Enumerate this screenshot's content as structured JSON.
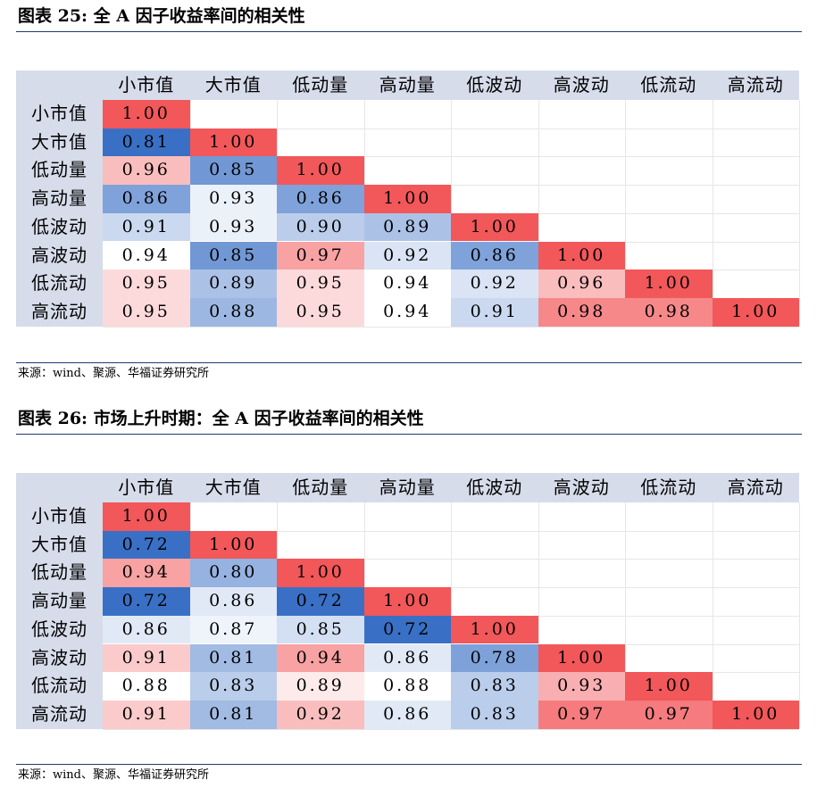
{
  "source_text": "来源：wind、聚源、华福证券研究所",
  "colors": {
    "high": "#f2575a",
    "low": "#2f68c2",
    "neutral": "#ffffff",
    "header_bg": "#d6dcea",
    "rule": "#1f3a73"
  },
  "tables": [
    {
      "title": "图表 25:  全 A 因子收益率间的相关性",
      "columns": [
        "小市值",
        "大市值",
        "低动量",
        "高动量",
        "低波动",
        "高波动",
        "低流动",
        "高流动"
      ],
      "rows": [
        {
          "label": "小市值",
          "values": [
            "1.00"
          ]
        },
        {
          "label": "大市值",
          "values": [
            "0.81",
            "1.00"
          ]
        },
        {
          "label": "低动量",
          "values": [
            "0.96",
            "0.85",
            "1.00"
          ]
        },
        {
          "label": "高动量",
          "values": [
            "0.86",
            "0.93",
            "0.86",
            "1.00"
          ]
        },
        {
          "label": "低波动",
          "values": [
            "0.91",
            "0.93",
            "0.90",
            "0.89",
            "1.00"
          ]
        },
        {
          "label": "高波动",
          "values": [
            "0.94",
            "0.85",
            "0.97",
            "0.92",
            "0.86",
            "1.00"
          ]
        },
        {
          "label": "低流动",
          "values": [
            "0.95",
            "0.89",
            "0.95",
            "0.94",
            "0.92",
            "0.96",
            "1.00"
          ]
        },
        {
          "label": "高流动",
          "values": [
            "0.95",
            "0.88",
            "0.95",
            "0.94",
            "0.91",
            "0.98",
            "0.98",
            "1.00"
          ]
        }
      ]
    },
    {
      "title": "图表 26:  市场上升时期：全 A 因子收益率间的相关性",
      "columns": [
        "小市值",
        "大市值",
        "低动量",
        "高动量",
        "低波动",
        "高波动",
        "低流动",
        "高流动"
      ],
      "rows": [
        {
          "label": "小市值",
          "values": [
            "1.00"
          ]
        },
        {
          "label": "大市值",
          "values": [
            "0.72",
            "1.00"
          ]
        },
        {
          "label": "低动量",
          "values": [
            "0.94",
            "0.80",
            "1.00"
          ]
        },
        {
          "label": "高动量",
          "values": [
            "0.72",
            "0.86",
            "0.72",
            "1.00"
          ]
        },
        {
          "label": "低波动",
          "values": [
            "0.86",
            "0.87",
            "0.85",
            "0.72",
            "1.00"
          ]
        },
        {
          "label": "高波动",
          "values": [
            "0.91",
            "0.81",
            "0.94",
            "0.86",
            "0.78",
            "1.00"
          ]
        },
        {
          "label": "低流动",
          "values": [
            "0.88",
            "0.83",
            "0.89",
            "0.88",
            "0.83",
            "0.93",
            "1.00"
          ]
        },
        {
          "label": "高流动",
          "values": [
            "0.91",
            "0.81",
            "0.92",
            "0.86",
            "0.83",
            "0.97",
            "0.97",
            "1.00"
          ]
        }
      ]
    }
  ]
}
